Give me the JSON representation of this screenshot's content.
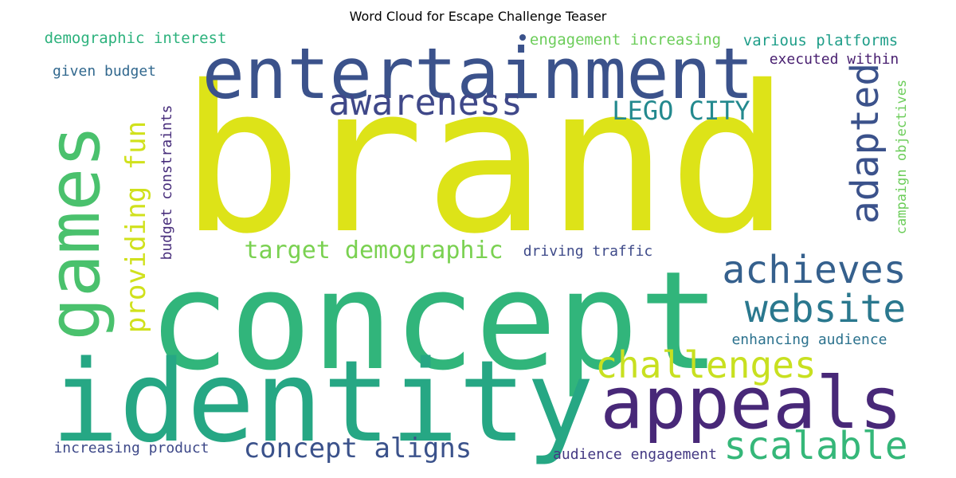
{
  "title": "Word Cloud for Escape Challenge Teaser",
  "dot_color": "#3b528b",
  "words": [
    {
      "text": "brand",
      "color": "#dde318",
      "vertical": false
    },
    {
      "text": "concept",
      "color": "#31b57b",
      "vertical": false
    },
    {
      "text": "identity",
      "color": "#26a784",
      "vertical": false
    },
    {
      "text": "entertainment",
      "color": "#3b528b",
      "vertical": false
    },
    {
      "text": "games",
      "color": "#4ac16d",
      "vertical": true
    },
    {
      "text": "appeals",
      "color": "#482878",
      "vertical": false
    },
    {
      "text": "awareness",
      "color": "#3f4889",
      "vertical": false
    },
    {
      "text": "achieves",
      "color": "#35608d",
      "vertical": false
    },
    {
      "text": "website",
      "color": "#2a788e",
      "vertical": false
    },
    {
      "text": "adapted",
      "color": "#3b528b",
      "vertical": true
    },
    {
      "text": "challenges",
      "color": "#c8e020",
      "vertical": false
    },
    {
      "text": "scalable",
      "color": "#35b779",
      "vertical": false
    },
    {
      "text": "providing fun",
      "color": "#d0e11c",
      "vertical": true
    },
    {
      "text": "LEGO CITY",
      "color": "#23898e",
      "vertical": false
    },
    {
      "text": "target demographic",
      "color": "#7ad151",
      "vertical": false
    },
    {
      "text": "concept aligns",
      "color": "#3b528b",
      "vertical": false
    },
    {
      "text": "budget constraints",
      "color": "#472d7b",
      "vertical": true
    },
    {
      "text": "campaign objectives",
      "color": "#6ccd5a",
      "vertical": true
    },
    {
      "text": "demographic interest",
      "color": "#2db27d",
      "vertical": false
    },
    {
      "text": "engagement increasing",
      "color": "#6ccd5a",
      "vertical": false
    },
    {
      "text": "various platforms",
      "color": "#1f9e89",
      "vertical": false
    },
    {
      "text": "executed within",
      "color": "#481f70",
      "vertical": false
    },
    {
      "text": "given budget",
      "color": "#31688e",
      "vertical": false
    },
    {
      "text": "driving traffic",
      "color": "#3e4a89",
      "vertical": false
    },
    {
      "text": "enhancing audience",
      "color": "#2c728e",
      "vertical": false
    },
    {
      "text": "increasing product",
      "color": "#3e4989",
      "vertical": false
    },
    {
      "text": "audience engagement",
      "color": "#443983",
      "vertical": false
    }
  ]
}
